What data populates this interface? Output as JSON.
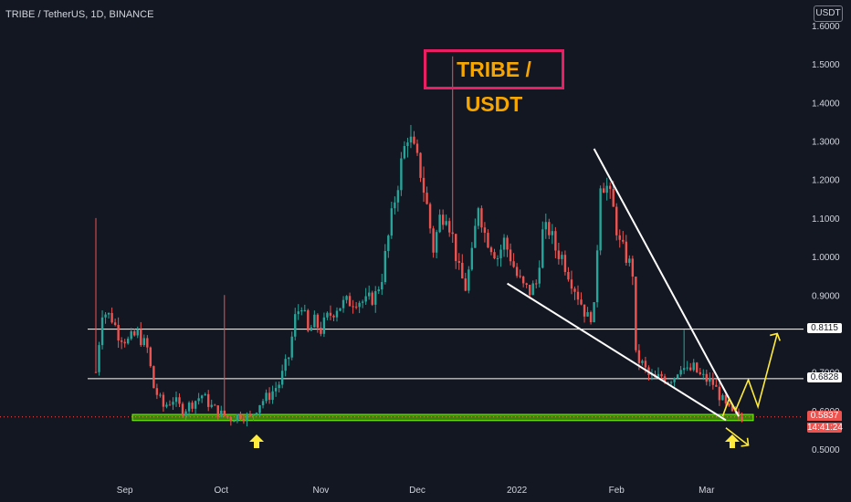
{
  "header": {
    "symbol": "TRIBE / TetherUS, 1D, BINANCE",
    "currency_button": "USDT"
  },
  "annotation": {
    "title": "TRIBE / USDT"
  },
  "price_tags": {
    "level_upper": "0.8115",
    "level_lower": "0.6828",
    "current_price": "0.5837",
    "countdown": "14:41:24"
  },
  "colors": {
    "background": "#131722",
    "up": "#26a69a",
    "down": "#ef5350",
    "support_zone": "#76ff03",
    "trendline": "#ffffff",
    "projection": "#ffeb3b",
    "title_border": "#e91e63",
    "title_text": "#f7a600"
  },
  "chart_data": {
    "type": "candlestick",
    "x_tick_labels": [
      "Sep",
      "Oct",
      "Nov",
      "Dec",
      "2022",
      "Feb",
      "Mar"
    ],
    "y_tick_labels": [
      "1.6000",
      "1.5000",
      "1.4000",
      "1.3000",
      "1.2000",
      "1.1000",
      "1.0000",
      "0.9000",
      "0.7000",
      "0.6000",
      "0.5000"
    ],
    "ylim": [
      0.42,
      1.62
    ],
    "horizontal_levels": [
      0.8115,
      0.6828
    ],
    "support_zone": [
      0.574,
      0.59
    ],
    "current_price": 0.5837,
    "close_path": [
      [
        0,
        0.7
      ],
      [
        2,
        0.86
      ],
      [
        5,
        0.84
      ],
      [
        7,
        0.8
      ],
      [
        10,
        0.78
      ],
      [
        13,
        0.8
      ],
      [
        16,
        0.76
      ],
      [
        18,
        0.66
      ],
      [
        21,
        0.61
      ],
      [
        24,
        0.63
      ],
      [
        27,
        0.6
      ],
      [
        30,
        0.62
      ],
      [
        33,
        0.64
      ],
      [
        36,
        0.61
      ],
      [
        39,
        0.59
      ],
      [
        42,
        0.58
      ],
      [
        45,
        0.59
      ],
      [
        48,
        0.58
      ],
      [
        51,
        0.62
      ],
      [
        54,
        0.64
      ],
      [
        57,
        0.67
      ],
      [
        60,
        0.74
      ],
      [
        62,
        0.84
      ],
      [
        64,
        0.88
      ],
      [
        66,
        0.8
      ],
      [
        68,
        0.83
      ],
      [
        70,
        0.81
      ],
      [
        72,
        0.84
      ],
      [
        75,
        0.87
      ],
      [
        78,
        0.88
      ],
      [
        81,
        0.89
      ],
      [
        84,
        0.88
      ],
      [
        87,
        0.9
      ],
      [
        89,
        0.95
      ],
      [
        91,
        1.05
      ],
      [
        93,
        1.15
      ],
      [
        95,
        1.24
      ],
      [
        97,
        1.32
      ],
      [
        99,
        1.27
      ],
      [
        101,
        1.22
      ],
      [
        103,
        1.13
      ],
      [
        105,
        1.02
      ],
      [
        107,
        1.1
      ],
      [
        109,
        1.12
      ],
      [
        111,
        1.05
      ],
      [
        113,
        0.96
      ],
      [
        115,
        0.92
      ],
      [
        117,
        1.0
      ],
      [
        119,
        1.14
      ],
      [
        121,
        1.06
      ],
      [
        123,
        1.03
      ],
      [
        125,
        1.0
      ],
      [
        127,
        1.04
      ],
      [
        129,
        1.0
      ],
      [
        131,
        0.95
      ],
      [
        133,
        0.92
      ],
      [
        135,
        0.91
      ],
      [
        137,
        0.93
      ],
      [
        139,
        1.06
      ],
      [
        141,
        1.07
      ],
      [
        143,
        1.02
      ],
      [
        145,
        1.0
      ],
      [
        147,
        0.96
      ],
      [
        149,
        0.92
      ],
      [
        151,
        0.88
      ],
      [
        153,
        0.84
      ],
      [
        155,
        0.86
      ],
      [
        157,
        1.2
      ],
      [
        159,
        1.18
      ],
      [
        161,
        1.12
      ],
      [
        163,
        1.03
      ],
      [
        165,
        1.0
      ],
      [
        167,
        0.96
      ],
      [
        168,
        0.74
      ],
      [
        170,
        0.72
      ],
      [
        172,
        0.69
      ],
      [
        174,
        0.68
      ],
      [
        176,
        0.69
      ],
      [
        178,
        0.68
      ],
      [
        180,
        0.69
      ],
      [
        182,
        0.72
      ],
      [
        184,
        0.7
      ],
      [
        186,
        0.71
      ],
      [
        188,
        0.69
      ],
      [
        190,
        0.68
      ],
      [
        192,
        0.67
      ],
      [
        194,
        0.64
      ],
      [
        196,
        0.61
      ],
      [
        198,
        0.59
      ],
      [
        200,
        0.585
      ],
      [
        201,
        0.5837
      ]
    ],
    "spikes": [
      {
        "day": 0,
        "high": 1.1
      },
      {
        "day": 40,
        "high": 0.9
      },
      {
        "day": 111,
        "high": 1.52
      },
      {
        "day": 183,
        "high": 0.81
      }
    ],
    "drawings": {
      "lower_trendline": [
        [
          128,
          0.93
        ],
        [
          196,
          0.575
        ]
      ],
      "upper_trendline": [
        [
          155,
          1.28
        ],
        [
          200,
          0.585
        ]
      ],
      "bullish_projection": [
        [
          195,
          0.585
        ],
        [
          197,
          0.63
        ],
        [
          199,
          0.6
        ],
        [
          203,
          0.68
        ],
        [
          206,
          0.61
        ],
        [
          212,
          0.8
        ]
      ],
      "bearish_projection": [
        [
          196,
          0.555
        ],
        [
          203,
          0.51
        ]
      ],
      "arrow_days": [
        50,
        198
      ]
    }
  }
}
